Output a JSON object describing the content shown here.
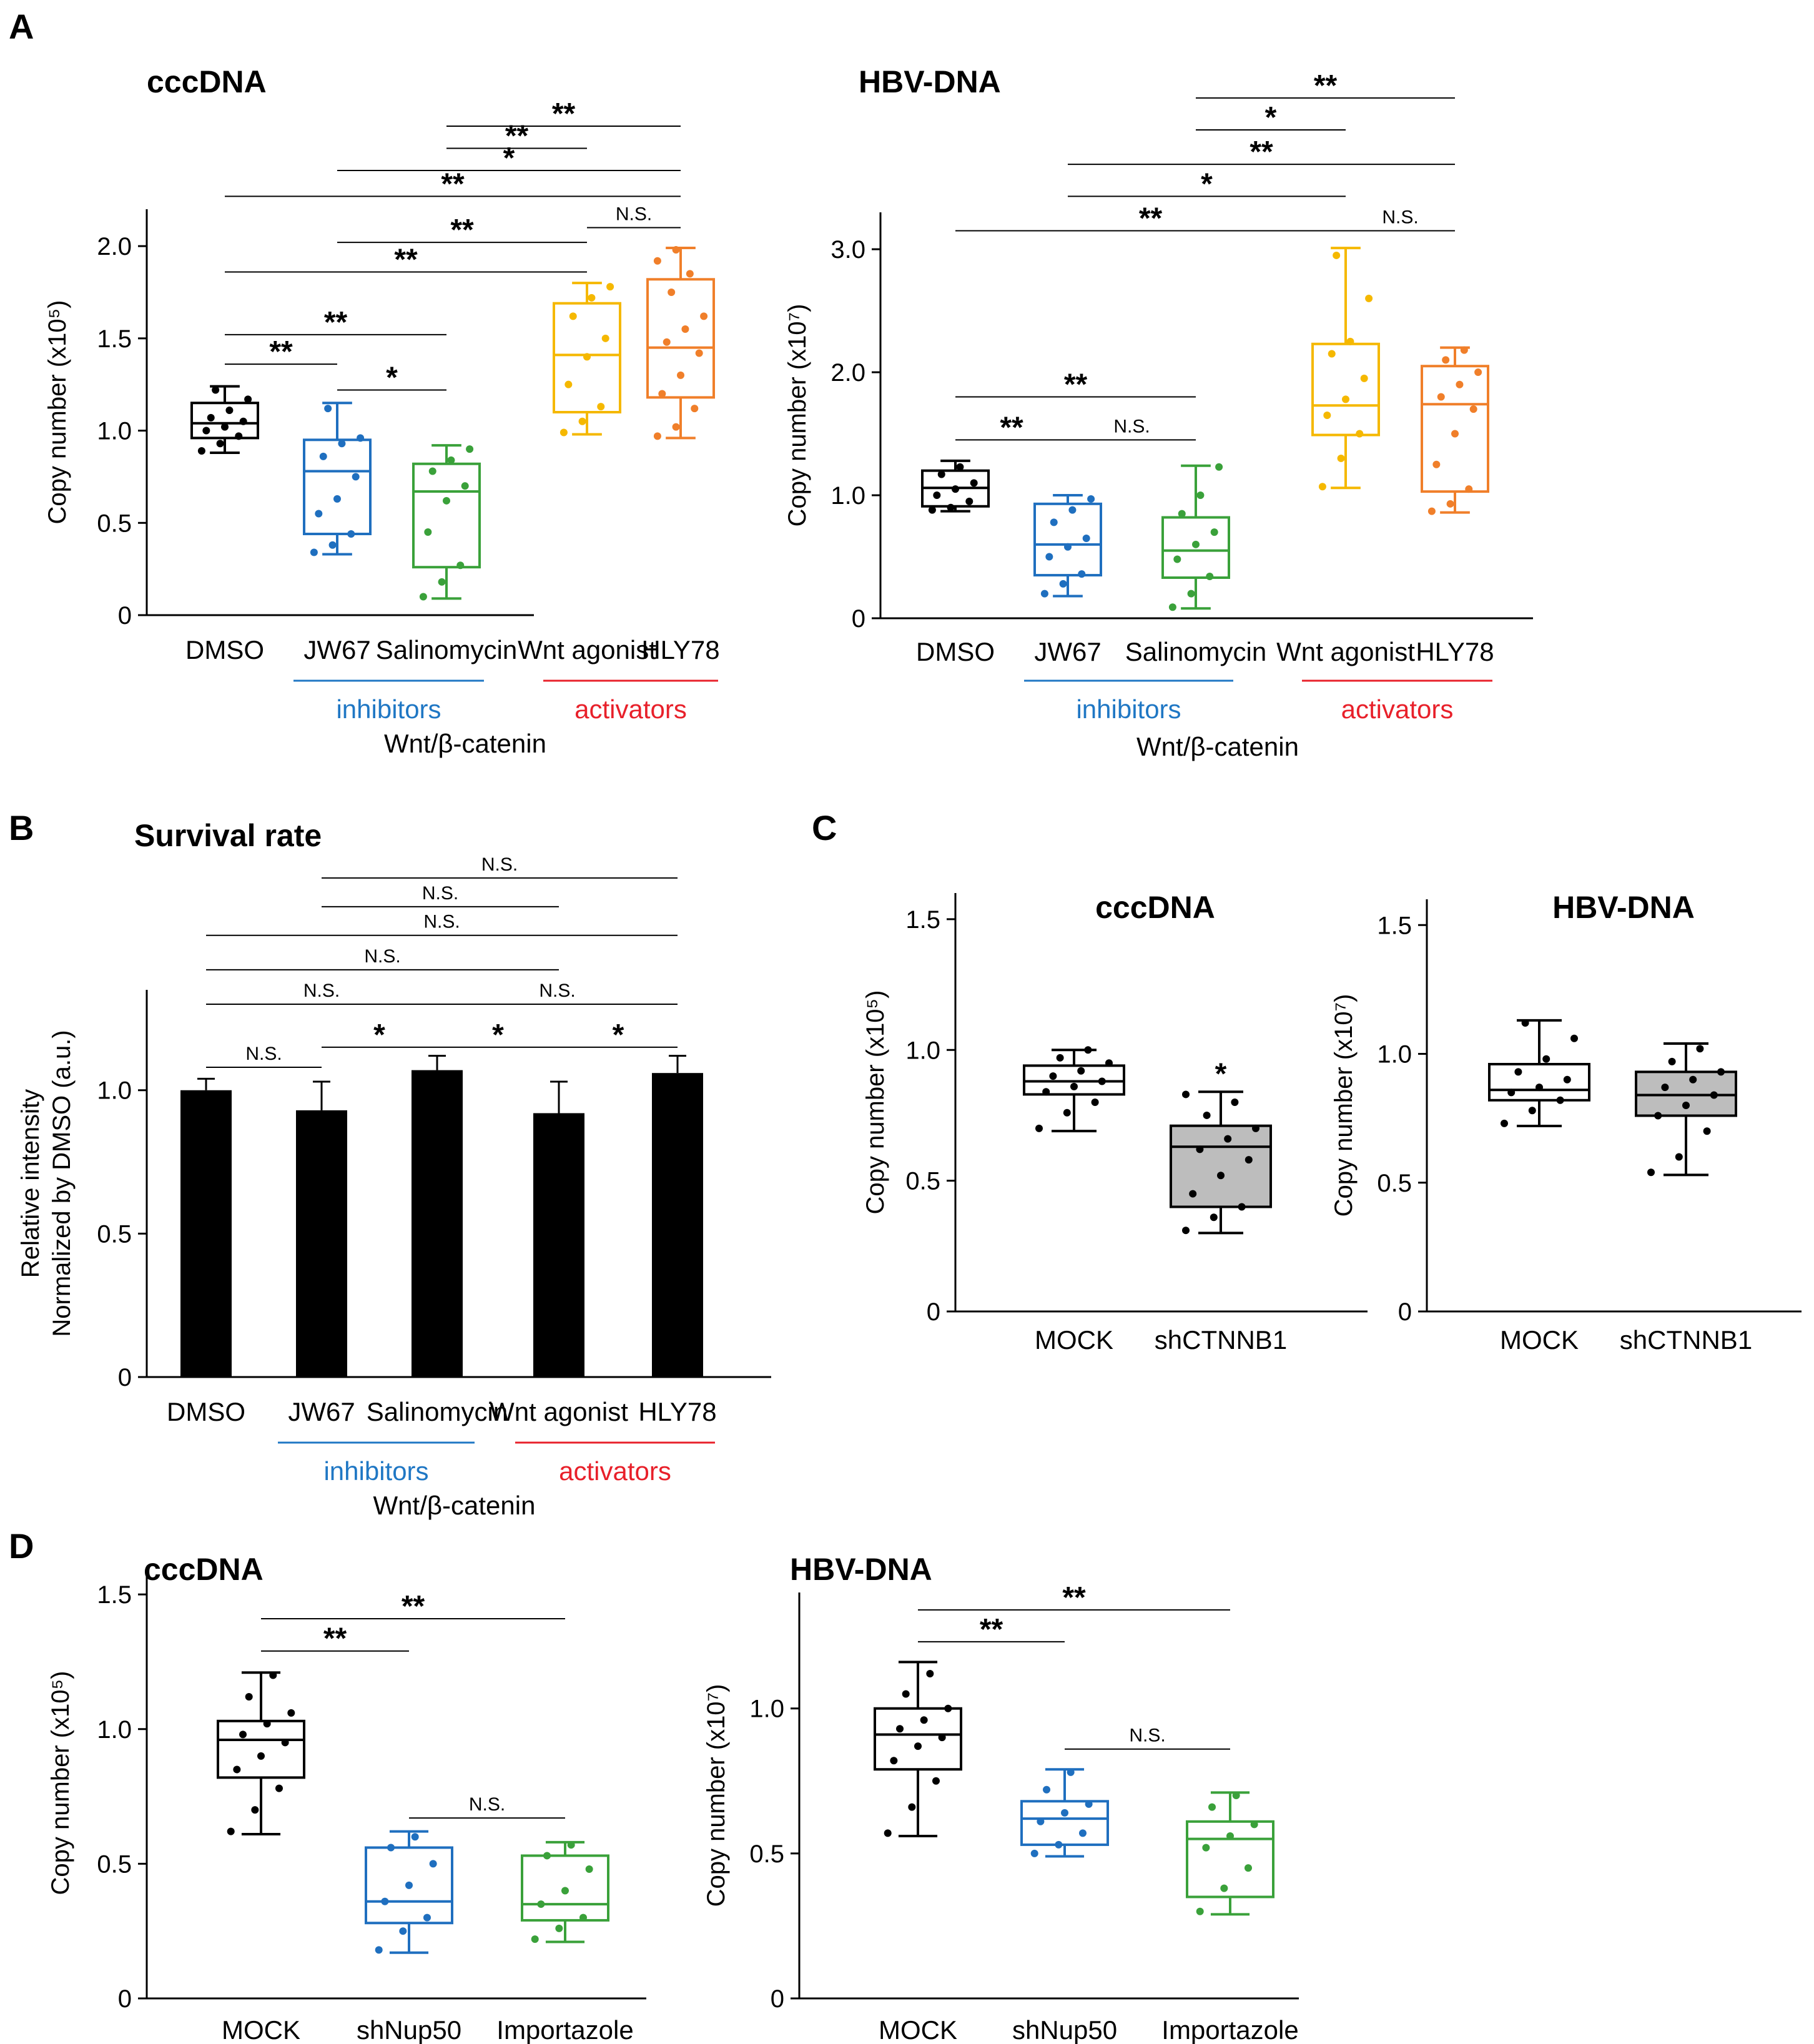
{
  "panels": {
    "A": "A",
    "B": "B",
    "C": "C",
    "D": "D"
  },
  "chart_data": [
    {
      "id": "A1",
      "type": "box",
      "panel": "A",
      "title": "cccDNA",
      "ylabel": "Copy number (x10⁵)",
      "ylim": [
        0,
        2.2
      ],
      "yticks": [
        0,
        0.5,
        1.0,
        1.5,
        2.0
      ],
      "ytick_labels": [
        "0",
        "0.5",
        "1.0",
        "1.5",
        "2.0"
      ],
      "categories": [
        "DMSO",
        "JW67",
        "Salinomycin",
        "Wnt agonist",
        "HLY78"
      ],
      "groups": [
        {
          "label": "inhibitors",
          "from": 1,
          "to": 2,
          "color": "#1f77c4"
        },
        {
          "label": "activators",
          "from": 3,
          "to": 4,
          "color": "#e8202a"
        }
      ],
      "group_caption": "Wnt/β-catenin",
      "colors": [
        "#000000",
        "#1f6fbf",
        "#3aa13a",
        "#f5b800",
        "#f07f2a"
      ],
      "boxes": [
        {
          "min": 0.88,
          "q1": 0.96,
          "median": 1.04,
          "q3": 1.15,
          "max": 1.24,
          "fill": "none",
          "points": [
            0.89,
            0.93,
            0.97,
            1.0,
            1.02,
            1.05,
            1.07,
            1.11,
            1.17,
            1.22
          ]
        },
        {
          "min": 0.33,
          "q1": 0.44,
          "median": 0.78,
          "q3": 0.95,
          "max": 1.15,
          "fill": "none",
          "points": [
            0.34,
            0.38,
            0.44,
            0.55,
            0.63,
            0.75,
            0.86,
            0.93,
            0.96,
            1.12
          ]
        },
        {
          "min": 0.09,
          "q1": 0.26,
          "median": 0.67,
          "q3": 0.82,
          "max": 0.92,
          "fill": "none",
          "points": [
            0.1,
            0.18,
            0.27,
            0.45,
            0.62,
            0.7,
            0.78,
            0.84,
            0.9
          ]
        },
        {
          "min": 0.98,
          "q1": 1.1,
          "median": 1.41,
          "q3": 1.69,
          "max": 1.8,
          "fill": "none",
          "points": [
            0.99,
            1.05,
            1.13,
            1.25,
            1.4,
            1.5,
            1.62,
            1.72,
            1.78
          ]
        },
        {
          "min": 0.96,
          "q1": 1.18,
          "median": 1.45,
          "q3": 1.82,
          "max": 1.99,
          "fill": "none",
          "points": [
            0.97,
            1.02,
            1.12,
            1.2,
            1.3,
            1.42,
            1.48,
            1.55,
            1.62,
            1.75,
            1.85,
            1.92,
            1.98
          ]
        }
      ],
      "sig": [
        {
          "a": 0,
          "b": 1,
          "label": "**",
          "y": 1.36
        },
        {
          "a": 0,
          "b": 2,
          "label": "**",
          "y": 1.52
        },
        {
          "a": 1,
          "b": 2,
          "label": "*",
          "y": 1.22
        },
        {
          "a": 0,
          "b": 3,
          "label": "**",
          "y": 1.86
        },
        {
          "a": 1,
          "b": 3,
          "label": "**",
          "y": 2.02
        },
        {
          "a": 3,
          "b": 4,
          "label": "N.S.",
          "y": 2.1
        },
        {
          "a": 0,
          "b": 4,
          "label": "**",
          "y": 2.27
        },
        {
          "a": 1,
          "b": 4,
          "label": "*",
          "y": 2.41
        },
        {
          "a": 2,
          "b": 3,
          "label": "**",
          "y": 2.53
        },
        {
          "a": 2,
          "b": 4,
          "label": "**",
          "y": 2.65
        }
      ]
    },
    {
      "id": "A2",
      "type": "box",
      "panel": "A",
      "title": "HBV-DNA",
      "ylabel": "Copy number (x10⁷)",
      "ylim": [
        0,
        3.3
      ],
      "yticks": [
        0,
        1.0,
        2.0,
        3.0
      ],
      "ytick_labels": [
        "0",
        "1.0",
        "2.0",
        "3.0"
      ],
      "categories": [
        "DMSO",
        "JW67",
        "Salinomycin",
        "Wnt agonist",
        "HLY78"
      ],
      "groups": [
        {
          "label": "inhibitors",
          "from": 1,
          "to": 2,
          "color": "#1f77c4"
        },
        {
          "label": "activators",
          "from": 3,
          "to": 4,
          "color": "#e8202a"
        }
      ],
      "group_caption": "Wnt/β-catenin",
      "colors": [
        "#000000",
        "#1f6fbf",
        "#3aa13a",
        "#f5b800",
        "#f07f2a"
      ],
      "boxes": [
        {
          "min": 0.87,
          "q1": 0.91,
          "median": 1.06,
          "q3": 1.2,
          "max": 1.28,
          "fill": "none",
          "points": [
            0.88,
            0.9,
            0.95,
            1.0,
            1.05,
            1.1,
            1.17,
            1.23
          ]
        },
        {
          "min": 0.18,
          "q1": 0.35,
          "median": 0.6,
          "q3": 0.93,
          "max": 1.0,
          "fill": "none",
          "points": [
            0.2,
            0.28,
            0.36,
            0.5,
            0.58,
            0.65,
            0.78,
            0.88,
            0.97
          ]
        },
        {
          "min": 0.08,
          "q1": 0.33,
          "median": 0.55,
          "q3": 0.82,
          "max": 1.24,
          "fill": "none",
          "points": [
            0.09,
            0.2,
            0.34,
            0.48,
            0.6,
            0.7,
            0.85,
            1.0,
            1.23
          ]
        },
        {
          "min": 1.06,
          "q1": 1.49,
          "median": 1.73,
          "q3": 2.23,
          "max": 3.01,
          "fill": "none",
          "points": [
            1.07,
            1.3,
            1.5,
            1.65,
            1.78,
            1.95,
            2.15,
            2.25,
            2.6,
            2.95
          ]
        },
        {
          "min": 0.86,
          "q1": 1.03,
          "median": 1.74,
          "q3": 2.05,
          "max": 2.2,
          "fill": "none",
          "points": [
            0.87,
            0.93,
            1.05,
            1.25,
            1.5,
            1.7,
            1.8,
            1.9,
            2.0,
            2.1,
            2.18
          ]
        }
      ],
      "sig": [
        {
          "a": 0,
          "b": 1,
          "label": "**",
          "y": 1.45
        },
        {
          "a": 1,
          "b": 2,
          "label": "N.S.",
          "y": 1.45
        },
        {
          "a": 0,
          "b": 2,
          "label": "**",
          "y": 1.8
        },
        {
          "a": 0,
          "b": 3,
          "label": "**",
          "y": 3.15
        },
        {
          "a": 3,
          "b": 4,
          "label": "N.S.",
          "y": 3.15
        },
        {
          "a": 1,
          "b": 3,
          "label": "*",
          "y": 3.43
        },
        {
          "a": 1,
          "b": 4,
          "label": "**",
          "y": 3.69
        },
        {
          "a": 2,
          "b": 3,
          "label": "*",
          "y": 3.97
        },
        {
          "a": 2,
          "b": 4,
          "label": "**",
          "y": 4.23
        }
      ]
    },
    {
      "id": "B",
      "type": "bar",
      "panel": "B",
      "title": "Survival rate",
      "ylabel_lines": [
        "Relative intensity",
        "Normalized by DMSO (a.u.)"
      ],
      "ylim": [
        0,
        1.35
      ],
      "yticks": [
        0,
        0.5,
        1.0
      ],
      "ytick_labels": [
        "0",
        "0.5",
        "1.0"
      ],
      "categories": [
        "DMSO",
        "JW67",
        "Salinomycin",
        "Wnt agonist",
        "HLY78"
      ],
      "values": [
        1.0,
        0.93,
        1.07,
        0.92,
        1.06
      ],
      "errors": [
        0.04,
        0.1,
        0.05,
        0.11,
        0.06
      ],
      "groups": [
        {
          "label": "inhibitors",
          "from": 1,
          "to": 2,
          "color": "#1f77c4"
        },
        {
          "label": "activators",
          "from": 3,
          "to": 4,
          "color": "#e8202a"
        }
      ],
      "group_caption": "Wnt/β-catenin",
      "sig": [
        {
          "a": 0,
          "b": 1,
          "label": "N.S.",
          "y": 1.08
        },
        {
          "a": 1,
          "b": 2,
          "label": "*",
          "y": 1.15
        },
        {
          "a": 2,
          "b": 3,
          "label": "*",
          "y": 1.15
        },
        {
          "a": 3,
          "b": 4,
          "label": "*",
          "y": 1.15
        },
        {
          "a": 0,
          "b": 2,
          "label": "N.S.",
          "y": 1.3
        },
        {
          "a": 2,
          "b": 4,
          "label": "N.S.",
          "y": 1.3
        },
        {
          "a": 0,
          "b": 3,
          "label": "N.S.",
          "y": 1.42
        },
        {
          "a": 0,
          "b": 4,
          "label": "N.S.",
          "y": 1.54
        },
        {
          "a": 1,
          "b": 3,
          "label": "N.S.",
          "y": 1.64
        },
        {
          "a": 1,
          "b": 4,
          "label": "N.S.",
          "y": 1.74
        }
      ]
    },
    {
      "id": "C1",
      "type": "box",
      "panel": "C",
      "title": "cccDNA",
      "ylabel": "Copy number (x10⁵)",
      "ylim": [
        0,
        1.6
      ],
      "yticks": [
        0,
        0.5,
        1.0,
        1.5
      ],
      "ytick_labels": [
        "0",
        "0.5",
        "1.0",
        "1.5"
      ],
      "categories": [
        "MOCK",
        "shCTNNB1"
      ],
      "colors": [
        "#000000",
        "#000000"
      ],
      "boxes": [
        {
          "min": 0.69,
          "q1": 0.83,
          "median": 0.88,
          "q3": 0.94,
          "max": 1.0,
          "fill": "#ffffff",
          "points": [
            0.7,
            0.76,
            0.8,
            0.84,
            0.86,
            0.88,
            0.9,
            0.92,
            0.95,
            0.97,
            1.0
          ]
        },
        {
          "min": 0.3,
          "q1": 0.4,
          "median": 0.63,
          "q3": 0.71,
          "max": 0.84,
          "fill": "#bdbdbd",
          "points": [
            0.31,
            0.36,
            0.4,
            0.45,
            0.52,
            0.58,
            0.62,
            0.66,
            0.7,
            0.75,
            0.8,
            0.83
          ]
        }
      ],
      "sig": [
        {
          "a": 1,
          "b": 1,
          "label": "*",
          "y": 0.87
        }
      ]
    },
    {
      "id": "C2",
      "type": "box",
      "panel": "C",
      "title": "HBV-DNA",
      "ylabel": "Copy number (x10⁷)",
      "ylim": [
        0,
        1.6
      ],
      "yticks": [
        0,
        0.5,
        1.0,
        1.5
      ],
      "ytick_labels": [
        "0",
        "0.5",
        "1.0",
        "1.5"
      ],
      "categories": [
        "MOCK",
        "shCTNNB1"
      ],
      "colors": [
        "#000000",
        "#000000"
      ],
      "boxes": [
        {
          "min": 0.72,
          "q1": 0.82,
          "median": 0.86,
          "q3": 0.96,
          "max": 1.13,
          "fill": "#ffffff",
          "points": [
            0.73,
            0.78,
            0.82,
            0.85,
            0.87,
            0.9,
            0.93,
            0.98,
            1.06,
            1.12
          ]
        },
        {
          "min": 0.53,
          "q1": 0.76,
          "median": 0.84,
          "q3": 0.93,
          "max": 1.04,
          "fill": "#bdbdbd",
          "points": [
            0.54,
            0.6,
            0.7,
            0.76,
            0.8,
            0.84,
            0.87,
            0.9,
            0.93,
            0.97,
            1.02
          ]
        }
      ],
      "sig": []
    },
    {
      "id": "D1",
      "type": "box",
      "panel": "D",
      "title": "cccDNA",
      "ylabel": "Copy number (x10⁵)",
      "ylim": [
        0,
        1.6
      ],
      "yticks": [
        0,
        0.5,
        1.0,
        1.5
      ],
      "ytick_labels": [
        "0",
        "0.5",
        "1.0",
        "1.5"
      ],
      "categories": [
        "MOCK",
        "shNup50",
        "Importazole"
      ],
      "colors": [
        "#000000",
        "#1f6fbf",
        "#3aa13a"
      ],
      "boxes": [
        {
          "min": 0.61,
          "q1": 0.82,
          "median": 0.96,
          "q3": 1.03,
          "max": 1.21,
          "fill": "none",
          "points": [
            0.62,
            0.7,
            0.78,
            0.85,
            0.9,
            0.95,
            0.98,
            1.02,
            1.06,
            1.12,
            1.2
          ]
        },
        {
          "min": 0.17,
          "q1": 0.28,
          "median": 0.36,
          "q3": 0.56,
          "max": 0.62,
          "fill": "none",
          "points": [
            0.18,
            0.25,
            0.3,
            0.36,
            0.42,
            0.5,
            0.56,
            0.6
          ]
        },
        {
          "min": 0.21,
          "q1": 0.29,
          "median": 0.35,
          "q3": 0.53,
          "max": 0.58,
          "fill": "none",
          "points": [
            0.22,
            0.26,
            0.3,
            0.35,
            0.4,
            0.48,
            0.53,
            0.57
          ]
        }
      ],
      "sig": [
        {
          "a": 0,
          "b": 1,
          "label": "**",
          "y": 1.29
        },
        {
          "a": 0,
          "b": 2,
          "label": "**",
          "y": 1.41
        },
        {
          "a": 1,
          "b": 2,
          "label": "N.S.",
          "y": 0.67
        }
      ]
    },
    {
      "id": "D2",
      "type": "box",
      "panel": "D",
      "title": "HBV-DNA",
      "ylabel": "Copy number (x10⁷)",
      "ylim": [
        0,
        1.4
      ],
      "yticks": [
        0,
        0.5,
        1.0
      ],
      "ytick_labels": [
        "0",
        "0.5",
        "1.0"
      ],
      "categories": [
        "MOCK",
        "shNup50",
        "Importazole"
      ],
      "colors": [
        "#000000",
        "#1f6fbf",
        "#3aa13a"
      ],
      "boxes": [
        {
          "min": 0.56,
          "q1": 0.79,
          "median": 0.91,
          "q3": 1.0,
          "max": 1.16,
          "fill": "none",
          "points": [
            0.57,
            0.66,
            0.75,
            0.82,
            0.87,
            0.9,
            0.93,
            0.96,
            1.0,
            1.05,
            1.12
          ]
        },
        {
          "min": 0.49,
          "q1": 0.53,
          "median": 0.62,
          "q3": 0.68,
          "max": 0.79,
          "fill": "none",
          "points": [
            0.5,
            0.53,
            0.57,
            0.61,
            0.64,
            0.67,
            0.72,
            0.78
          ]
        },
        {
          "min": 0.29,
          "q1": 0.35,
          "median": 0.55,
          "q3": 0.61,
          "max": 0.71,
          "fill": "none",
          "points": [
            0.3,
            0.38,
            0.45,
            0.52,
            0.56,
            0.6,
            0.66,
            0.7
          ]
        }
      ],
      "sig": [
        {
          "a": 0,
          "b": 1,
          "label": "**",
          "y": 1.23
        },
        {
          "a": 0,
          "b": 2,
          "label": "**",
          "y": 1.34
        },
        {
          "a": 1,
          "b": 2,
          "label": "N.S.",
          "y": 0.86
        }
      ]
    }
  ]
}
